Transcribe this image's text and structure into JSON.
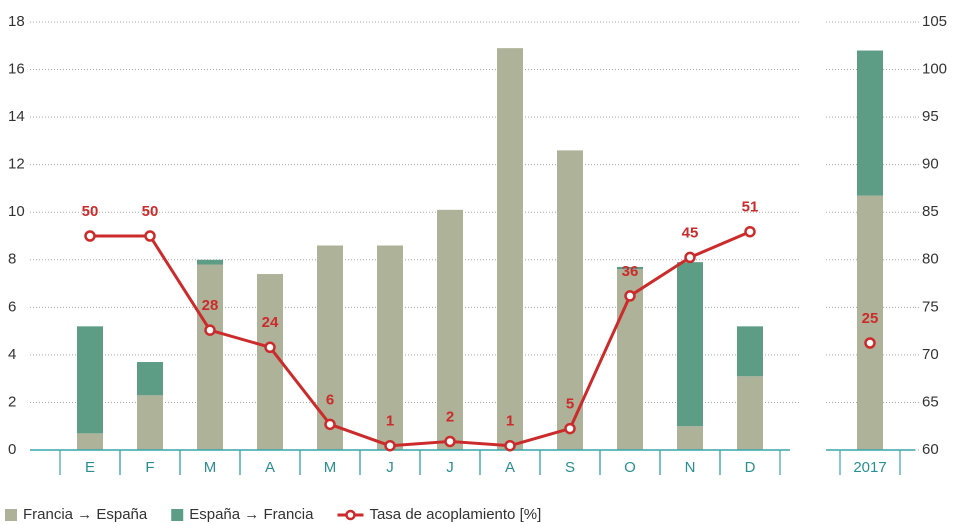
{
  "chart_data": {
    "type": "bar",
    "categories": [
      "E",
      "F",
      "M",
      "A",
      "M",
      "J",
      "J",
      "A",
      "S",
      "O",
      "N",
      "D",
      "2017"
    ],
    "series": [
      {
        "name": "Francia → España",
        "type": "bar",
        "color": "#adb298",
        "values": [
          0.7,
          2.3,
          7.8,
          7.4,
          8.6,
          8.6,
          10.1,
          16.9,
          12.6,
          7.6,
          1.0,
          3.1,
          10.7
        ]
      },
      {
        "name": "España → Francia",
        "type": "bar",
        "color": "#5d9c85",
        "values": [
          4.5,
          1.4,
          0.2,
          0,
          0,
          0,
          0,
          0,
          0,
          0.1,
          6.9,
          2.1,
          6.1
        ]
      },
      {
        "name": "Tasa de acoplamiento [%]",
        "type": "line",
        "color": "#cc2b2b",
        "axis": "y3",
        "values": [
          50,
          50,
          28,
          24,
          6,
          1,
          2,
          1,
          5,
          36,
          45,
          51,
          25
        ]
      }
    ],
    "ylim": [
      0,
      18
    ],
    "yticks": [
      0,
      2,
      4,
      6,
      8,
      10,
      12,
      14,
      16,
      18
    ],
    "y2lim": [
      60,
      105
    ],
    "y2ticks": [
      60,
      65,
      70,
      75,
      80,
      85,
      90,
      95,
      100,
      105
    ],
    "y3lim": [
      0,
      100
    ],
    "grid": true
  }
}
